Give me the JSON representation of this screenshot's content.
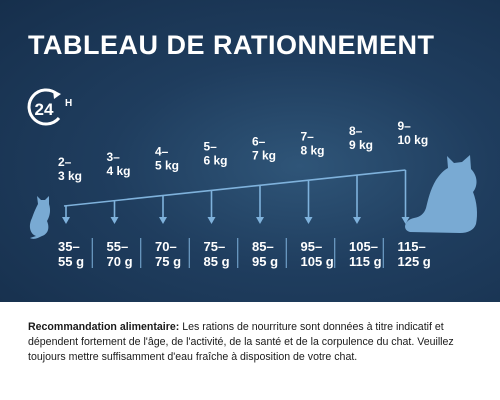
{
  "title": "TABLEAU DE RATIONNEMENT",
  "badge": {
    "number": "24",
    "unit": "H"
  },
  "colors": {
    "background": "#1f3d5e",
    "accent": "#7fb2dc",
    "cat": "#79aad3",
    "text": "#ffffff"
  },
  "icons": {
    "start": "small-cat-icon",
    "end": "large-cat-icon",
    "badge": "24h-clock-icon"
  },
  "weights": [
    {
      "range": "2–",
      "unit": "3 kg"
    },
    {
      "range": "3–",
      "unit": "4 kg"
    },
    {
      "range": "4–",
      "unit": "5 kg"
    },
    {
      "range": "5–",
      "unit": "6 kg"
    },
    {
      "range": "6–",
      "unit": "7 kg"
    },
    {
      "range": "7–",
      "unit": "8 kg"
    },
    {
      "range": "8–",
      "unit": "9 kg"
    },
    {
      "range": "9–",
      "unit": "10 kg"
    }
  ],
  "rations": [
    {
      "range": "35–",
      "unit": "55 g"
    },
    {
      "range": "55–",
      "unit": "70 g"
    },
    {
      "range": "70–",
      "unit": "75 g"
    },
    {
      "range": "75–",
      "unit": "85 g"
    },
    {
      "range": "85–",
      "unit": "95 g"
    },
    {
      "range": "95–",
      "unit": "105 g"
    },
    {
      "range": "105–",
      "unit": "115 g"
    },
    {
      "range": "115–",
      "unit": "125 g"
    }
  ],
  "recommendation": {
    "label": "Recommandation alimentaire:",
    "text": " Les rations de nourriture sont données à titre indicatif et dépendent fortement de l'âge, de l'activité, de la santé et de la corpulence du chat. Veuil­lez toujours mettre suffisamment d'eau fraîche à disposition de votre chat."
  }
}
